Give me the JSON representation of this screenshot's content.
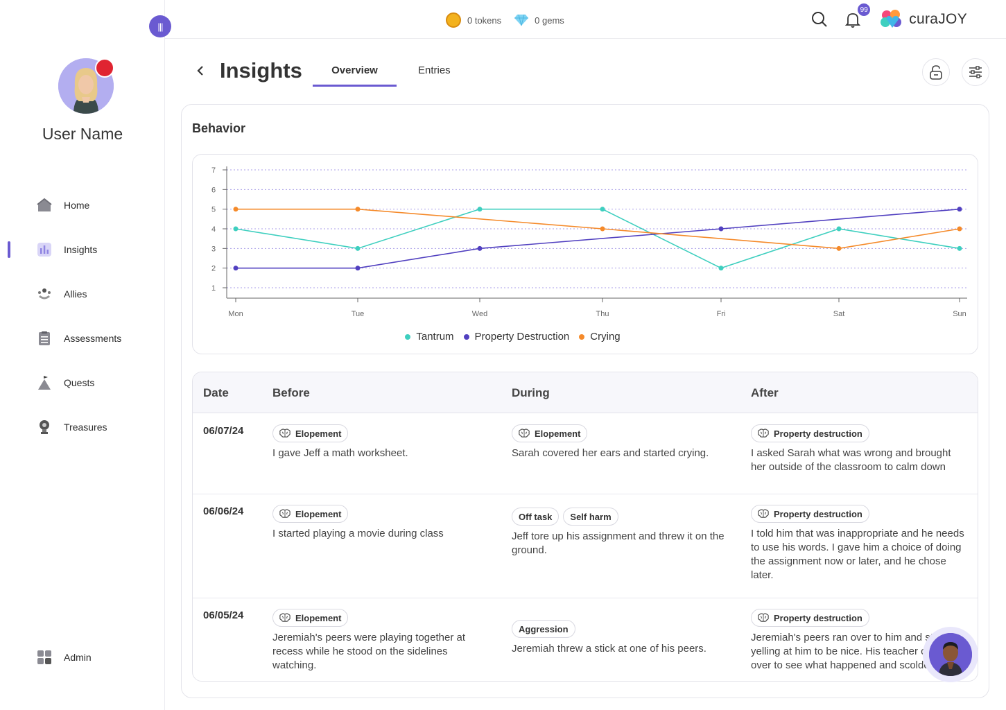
{
  "sidebar": {
    "user_name": "User Name",
    "items": [
      {
        "label": "Home",
        "icon": "home-icon"
      },
      {
        "label": "Insights",
        "icon": "insights-icon"
      },
      {
        "label": "Allies",
        "icon": "allies-icon"
      },
      {
        "label": "Assessments",
        "icon": "assessments-icon"
      },
      {
        "label": "Quests",
        "icon": "quests-icon"
      },
      {
        "label": "Treasures",
        "icon": "treasures-icon"
      }
    ],
    "admin_label": "Admin",
    "active": "Insights"
  },
  "topbar": {
    "tokens": "0 tokens",
    "gems": "0 gems",
    "notification_count": "99",
    "brand": "curaJOY"
  },
  "header": {
    "title": "Insights",
    "tabs": [
      {
        "label": "Overview"
      },
      {
        "label": "Entries"
      }
    ]
  },
  "section_title": "Behavior",
  "colors": {
    "accent": "#6a5ad1",
    "tantrum": "#3ecfbf",
    "property": "#5140c0",
    "crying": "#f58a2a"
  },
  "chart_data": {
    "type": "line",
    "categories": [
      "Mon",
      "Tue",
      "Wed",
      "Thu",
      "Fri",
      "Sat",
      "Sun"
    ],
    "series": [
      {
        "name": "Tantrum",
        "values": [
          4,
          3,
          5,
          5,
          2,
          4,
          3
        ]
      },
      {
        "name": "Property Destruction",
        "values": [
          2,
          2,
          3,
          null,
          4,
          null,
          5
        ]
      },
      {
        "name": "Crying",
        "values": [
          5,
          5,
          null,
          4,
          null,
          3,
          4
        ]
      }
    ],
    "yticks": [
      1,
      2,
      3,
      4,
      5,
      6,
      7
    ],
    "ylim": [
      0.5,
      7
    ],
    "grid": true,
    "legend": "bottom-center"
  },
  "table": {
    "headers": {
      "date": "Date",
      "before": "Before",
      "during": "During",
      "after": "After"
    },
    "rows": [
      {
        "date": "06/07/24",
        "before_tags": [
          "Elopement"
        ],
        "before_text": "I gave Jeff a math worksheet.",
        "during_tags": [
          "Elopement"
        ],
        "during_text": "Sarah covered her ears and started crying.",
        "after_tags": [
          "Property destruction"
        ],
        "after_text": "I asked Sarah what was wrong and brought her outside of the classroom to calm down"
      },
      {
        "date": "06/06/24",
        "before_tags": [
          "Elopement"
        ],
        "before_text": "I started playing a movie during class",
        "during_tags": [
          "Off task",
          "Self harm"
        ],
        "during_text": "Jeff tore up his assignment and threw it on the ground.",
        "after_tags": [
          "Property destruction"
        ],
        "after_text": "I told him that was inappropriate and he needs to use his words. I gave him a choice of doing the assignment now or later, and he chose later."
      },
      {
        "date": "06/05/24",
        "before_tags": [
          "Elopement"
        ],
        "before_text": "Jeremiah's peers were playing together at recess while he stood on the sidelines watching.",
        "during_tags": [
          "Aggression"
        ],
        "during_text": "Jeremiah threw a stick at one of his peers.",
        "after_tags": [
          "Property destruction"
        ],
        "after_text": "Jeremiah's peers ran over to him and started yelling at him to be nice. His teacher came over to see what happened and scolded him."
      }
    ]
  }
}
